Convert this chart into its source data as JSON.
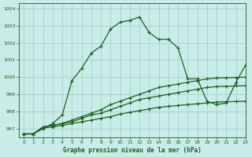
{
  "title": "Graphe pression niveau de la mer (hPa)",
  "bg_color": "#c8ece8",
  "grid_color": "#a0ccc8",
  "line_color": "#1a6020",
  "xlim": [
    -0.5,
    23
  ],
  "ylim": [
    996.5,
    1004.3
  ],
  "yticks": [
    997,
    998,
    999,
    1000,
    1001,
    1002,
    1003,
    1004
  ],
  "xticks": [
    0,
    1,
    2,
    3,
    4,
    5,
    6,
    7,
    8,
    9,
    10,
    11,
    12,
    13,
    14,
    15,
    16,
    17,
    18,
    19,
    20,
    21,
    22,
    23
  ],
  "series1_x": [
    0,
    1,
    2,
    3,
    4,
    5,
    6,
    7,
    8,
    9,
    10,
    11,
    12,
    13,
    14,
    15,
    16,
    17,
    18,
    19,
    20,
    21,
    22,
    23
  ],
  "series1_y": [
    996.7,
    996.7,
    997.0,
    997.3,
    997.8,
    999.8,
    1000.5,
    1001.4,
    1001.8,
    1002.8,
    1003.2,
    1003.3,
    1003.5,
    1002.6,
    1002.2,
    1002.2,
    1001.7,
    999.9,
    999.9,
    998.6,
    998.4,
    998.5,
    999.7,
    1000.7
  ],
  "series2_x": [
    0,
    1,
    2,
    3,
    4,
    5,
    6,
    7,
    8,
    9,
    10,
    11,
    12,
    13,
    14,
    15,
    16,
    17,
    18,
    19,
    20,
    21,
    22,
    23
  ],
  "series2_y": [
    996.7,
    996.7,
    997.1,
    997.2,
    997.3,
    997.5,
    997.7,
    997.9,
    998.1,
    998.4,
    998.6,
    998.8,
    999.0,
    999.2,
    999.4,
    999.5,
    999.6,
    999.7,
    999.8,
    999.9,
    999.95,
    999.97,
    999.98,
    1000.0
  ],
  "series3_x": [
    0,
    1,
    2,
    3,
    4,
    5,
    6,
    7,
    8,
    9,
    10,
    11,
    12,
    13,
    14,
    15,
    16,
    17,
    18,
    19,
    20,
    21,
    22,
    23
  ],
  "series3_y": [
    996.7,
    996.7,
    997.1,
    997.2,
    997.3,
    997.4,
    997.6,
    997.8,
    997.9,
    998.1,
    998.3,
    998.5,
    998.7,
    998.8,
    998.9,
    999.0,
    999.1,
    999.2,
    999.3,
    999.4,
    999.45,
    999.47,
    999.49,
    999.5
  ],
  "series4_x": [
    0,
    1,
    2,
    3,
    4,
    5,
    6,
    7,
    8,
    9,
    10,
    11,
    12,
    13,
    14,
    15,
    16,
    17,
    18,
    19,
    20,
    21,
    22,
    23
  ],
  "series4_y": [
    996.7,
    996.7,
    997.05,
    997.1,
    997.2,
    997.3,
    997.4,
    997.5,
    997.6,
    997.7,
    997.85,
    997.95,
    998.05,
    998.15,
    998.25,
    998.3,
    998.35,
    998.4,
    998.45,
    998.5,
    998.55,
    998.57,
    998.58,
    998.6
  ]
}
